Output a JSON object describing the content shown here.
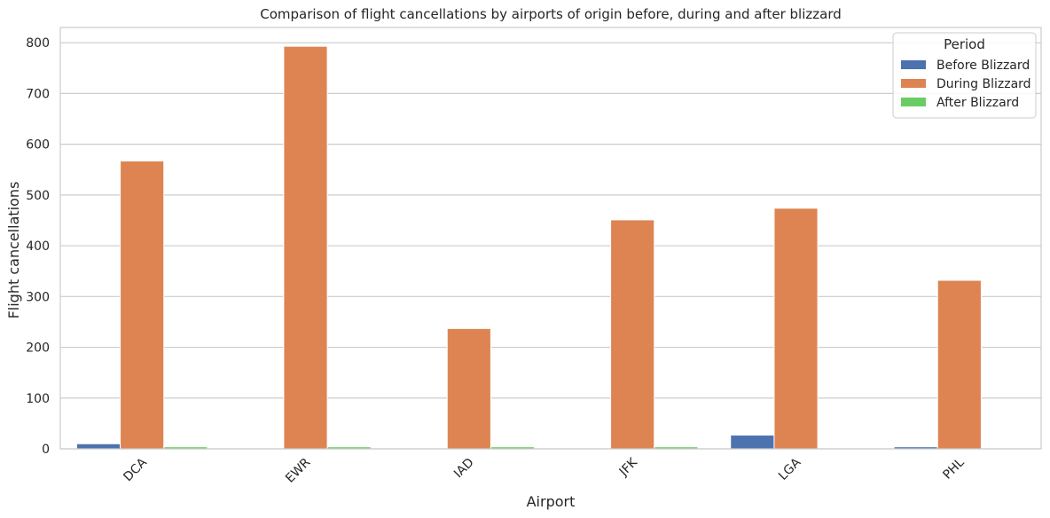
{
  "chart_data": {
    "type": "bar",
    "title": "Comparison of flight cancellations by airports of origin before, during and after blizzard",
    "xlabel": "Airport",
    "ylabel": "Flight cancellations",
    "categories": [
      "DCA",
      "EWR",
      "IAD",
      "JFK",
      "LGA",
      "PHL"
    ],
    "yticks": [
      0,
      100,
      200,
      300,
      400,
      500,
      600,
      700,
      800
    ],
    "ylim": [
      0,
      830
    ],
    "grid": true,
    "legend": {
      "title": "Period",
      "placement": "top-right"
    },
    "series": [
      {
        "name": "Before Blizzard",
        "color": "#4c72b0",
        "values": [
          10,
          0,
          0,
          0,
          27,
          4
        ]
      },
      {
        "name": "During Blizzard",
        "color": "#dd8452",
        "values": [
          567,
          793,
          237,
          451,
          474,
          332
        ]
      },
      {
        "name": "After Blizzard",
        "color": "#6acc64",
        "values": [
          4,
          4,
          4,
          4,
          0,
          0
        ]
      }
    ]
  }
}
